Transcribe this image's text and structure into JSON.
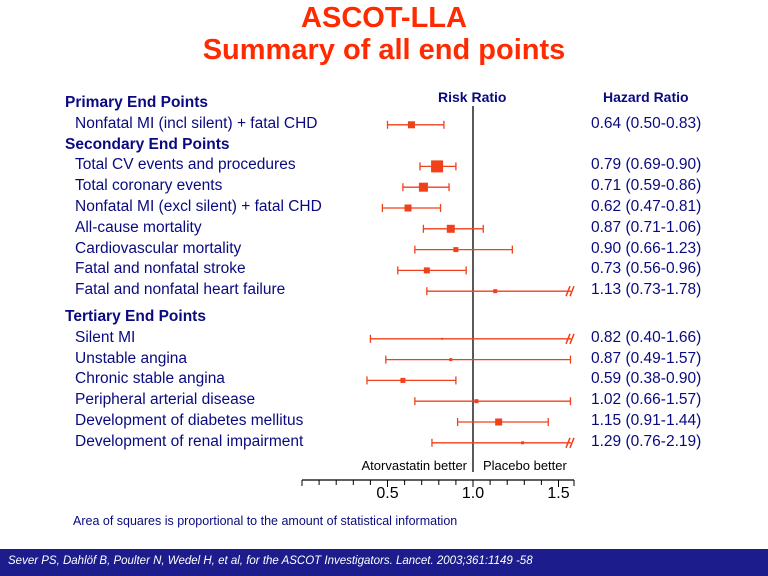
{
  "title_line1": "ASCOT-LLA",
  "title_line2": "Summary of all end points",
  "risk_ratio_header": "Risk Ratio",
  "hazard_ratio_header": "Hazard Ratio",
  "footnote": "Area of squares is proportional to the amount of statistical information",
  "citation": "Sever PS, Dahlöf B, Poulter N, Wedel H, et al, for the ASCOT Investigators. Lancet. 2003;361:1149 -58",
  "colors": {
    "title": "#ff2a00",
    "text": "#0a0a80",
    "marker": "#f0401c",
    "footer": "#1c1c8c"
  },
  "chart_data": {
    "type": "forest",
    "x_ticks": [
      "0.5",
      "1.0",
      "1.5"
    ],
    "x_range": [
      0.0,
      1.5
    ],
    "reference_line": 1.0,
    "left_label": "Atorvastatin better",
    "right_label": "Placebo better",
    "sections": [
      {
        "heading": "Primary End Points",
        "rows": [
          {
            "label": "Nonfatal MI (incl silent) + fatal CHD",
            "hr_text": "0.64 (0.50-0.83)",
            "est": 0.64,
            "lo": 0.5,
            "hi": 0.83,
            "size": 7,
            "truncated": false
          }
        ]
      },
      {
        "heading": "Secondary End Points",
        "rows": [
          {
            "label": "Total CV events and procedures",
            "hr_text": "0.79 (0.69-0.90)",
            "est": 0.79,
            "lo": 0.69,
            "hi": 0.9,
            "size": 12,
            "truncated": false
          },
          {
            "label": "Total coronary events",
            "hr_text": "0.71 (0.59-0.86)",
            "est": 0.71,
            "lo": 0.59,
            "hi": 0.86,
            "size": 9,
            "truncated": false
          },
          {
            "label": "Nonfatal MI (excl silent) + fatal CHD",
            "hr_text": "0.62 (0.47-0.81)",
            "est": 0.62,
            "lo": 0.47,
            "hi": 0.81,
            "size": 7,
            "truncated": false
          },
          {
            "label": "All-cause mortality",
            "hr_text": "0.87 (0.71-1.06)",
            "est": 0.87,
            "lo": 0.71,
            "hi": 1.06,
            "size": 8,
            "truncated": false
          },
          {
            "label": "Cardiovascular mortality",
            "hr_text": "0.90 (0.66-1.23)",
            "est": 0.9,
            "lo": 0.66,
            "hi": 1.23,
            "size": 5,
            "truncated": false
          },
          {
            "label": "Fatal and nonfatal  stroke",
            "hr_text": "0.73 (0.56-0.96)",
            "est": 0.73,
            "lo": 0.56,
            "hi": 0.96,
            "size": 6,
            "truncated": false
          },
          {
            "label": "Fatal and nonfatal heart failure",
            "hr_text": "1.13 (0.73-1.78)",
            "est": 1.13,
            "lo": 0.73,
            "hi": 1.78,
            "size": 4,
            "truncated": true
          }
        ]
      },
      {
        "heading": "Tertiary End Points",
        "rows": [
          {
            "label": "Silent MI",
            "hr_text": "0.82 (0.40-1.66)",
            "est": 0.82,
            "lo": 0.4,
            "hi": 1.66,
            "size": 2,
            "truncated": true
          },
          {
            "label": "Unstable angina",
            "hr_text": "0.87 (0.49-1.57)",
            "est": 0.87,
            "lo": 0.49,
            "hi": 1.57,
            "size": 3,
            "truncated": false
          },
          {
            "label": "Chronic stable angina",
            "hr_text": "0.59 (0.38-0.90)",
            "est": 0.59,
            "lo": 0.38,
            "hi": 0.9,
            "size": 5,
            "truncated": false
          },
          {
            "label": "Peripheral arterial disease",
            "hr_text": "1.02 (0.66-1.57)",
            "est": 1.02,
            "lo": 0.66,
            "hi": 1.57,
            "size": 4,
            "truncated": false
          },
          {
            "label": "Development of diabetes mellitus",
            "hr_text": "1.15 (0.91-1.44)",
            "est": 1.15,
            "lo": 0.91,
            "hi": 1.44,
            "size": 7,
            "truncated": false
          },
          {
            "label": "Development of renal impairment",
            "hr_text": "1.29 (0.76-2.19)",
            "est": 1.29,
            "lo": 0.76,
            "hi": 2.19,
            "size": 3,
            "truncated": true
          }
        ]
      }
    ]
  }
}
